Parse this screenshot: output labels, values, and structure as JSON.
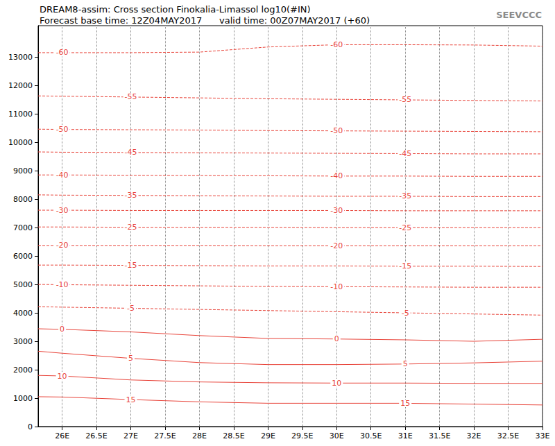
{
  "chart_data": {
    "type": "line",
    "title": "DREAM8-assim: Cross section Finokalia-Limassol log10(#IN)",
    "subtitle": "Forecast base time: 12Z04MAY2017      valid time: 00Z07MAY2017 (+60)",
    "logo": "SEEVCCC",
    "x": [
      25.65,
      26,
      27,
      28,
      29,
      30,
      31,
      32,
      33
    ],
    "xlim": [
      25.65,
      33
    ],
    "xticks": [
      {
        "value": 26,
        "label": "26E"
      },
      {
        "value": 26.5,
        "label": "26.5E"
      },
      {
        "value": 27,
        "label": "27E"
      },
      {
        "value": 27.5,
        "label": "27.5E"
      },
      {
        "value": 28,
        "label": "28E"
      },
      {
        "value": 28.5,
        "label": "28.5E"
      },
      {
        "value": 29,
        "label": "29E"
      },
      {
        "value": 29.5,
        "label": "29.5E"
      },
      {
        "value": 30,
        "label": "30E"
      },
      {
        "value": 30.5,
        "label": "30.5E"
      },
      {
        "value": 31,
        "label": "31E"
      },
      {
        "value": 31.5,
        "label": "31.5E"
      },
      {
        "value": 32,
        "label": "32E"
      },
      {
        "value": 32.5,
        "label": "32.5E"
      },
      {
        "value": 33,
        "label": "33E"
      }
    ],
    "ylim": [
      0,
      14100
    ],
    "yticks": [
      0,
      1000,
      2000,
      3000,
      4000,
      5000,
      6000,
      7000,
      8000,
      9000,
      10000,
      11000,
      12000,
      13000
    ],
    "grid": true,
    "series": [
      {
        "name": "-60",
        "color": "#e8443a",
        "line_style": "dashed",
        "values": [
          13150,
          13150,
          13150,
          13170,
          13350,
          13430,
          13430,
          13420,
          13380
        ]
      },
      {
        "name": "-55",
        "color": "#e8443a",
        "line_style": "dashed",
        "values": [
          11630,
          11620,
          11590,
          11560,
          11530,
          11510,
          11490,
          11470,
          11450
        ]
      },
      {
        "name": "-50",
        "color": "#e8443a",
        "line_style": "dashed",
        "values": [
          10460,
          10450,
          10440,
          10430,
          10410,
          10400,
          10390,
          10380,
          10370
        ]
      },
      {
        "name": "-45",
        "color": "#e8443a",
        "line_style": "dashed",
        "values": [
          9660,
          9650,
          9640,
          9630,
          9620,
          9610,
          9600,
          9590,
          9590
        ]
      },
      {
        "name": "-40",
        "color": "#e8443a",
        "line_style": "dashed",
        "values": [
          8850,
          8850,
          8840,
          8830,
          8820,
          8810,
          8810,
          8800,
          8800
        ]
      },
      {
        "name": "-35",
        "color": "#e8443a",
        "line_style": "dashed",
        "values": [
          8150,
          8140,
          8130,
          8120,
          8110,
          8100,
          8100,
          8090,
          8090
        ]
      },
      {
        "name": "-30",
        "color": "#e8443a",
        "line_style": "dashed",
        "values": [
          7610,
          7610,
          7600,
          7600,
          7600,
          7600,
          7590,
          7590,
          7590
        ]
      },
      {
        "name": "-25",
        "color": "#e8443a",
        "line_style": "dashed",
        "values": [
          7020,
          7020,
          7010,
          7010,
          7010,
          7000,
          7000,
          7000,
          7000
        ]
      },
      {
        "name": "-20",
        "color": "#e8443a",
        "line_style": "dashed",
        "values": [
          6370,
          6370,
          6370,
          6370,
          6360,
          6360,
          6360,
          6360,
          6360
        ]
      },
      {
        "name": "-15",
        "color": "#e8443a",
        "line_style": "dashed",
        "values": [
          5680,
          5680,
          5670,
          5660,
          5650,
          5650,
          5640,
          5640,
          5630
        ]
      },
      {
        "name": "-10",
        "color": "#e8443a",
        "line_style": "dashed",
        "values": [
          5000,
          4990,
          4970,
          4950,
          4930,
          4920,
          4910,
          4900,
          4900
        ]
      },
      {
        "name": "-5",
        "color": "#e8443a",
        "line_style": "dashed",
        "values": [
          4220,
          4200,
          4160,
          4120,
          4080,
          4040,
          4000,
          3960,
          3920
        ]
      },
      {
        "name": "0",
        "color": "#e8443a",
        "line_style": "solid",
        "values": [
          3440,
          3420,
          3330,
          3200,
          3100,
          3080,
          3050,
          3000,
          3070
        ]
      },
      {
        "name": "5",
        "color": "#e8443a",
        "line_style": "solid",
        "values": [
          2650,
          2580,
          2400,
          2250,
          2180,
          2180,
          2200,
          2240,
          2300
        ]
      },
      {
        "name": "10",
        "color": "#e8443a",
        "line_style": "solid",
        "values": [
          1800,
          1780,
          1640,
          1570,
          1540,
          1530,
          1530,
          1520,
          1520
        ]
      },
      {
        "name": "15",
        "color": "#e8443a",
        "line_style": "solid",
        "values": [
          1050,
          1040,
          950,
          870,
          820,
          820,
          820,
          790,
          760
        ]
      }
    ]
  }
}
